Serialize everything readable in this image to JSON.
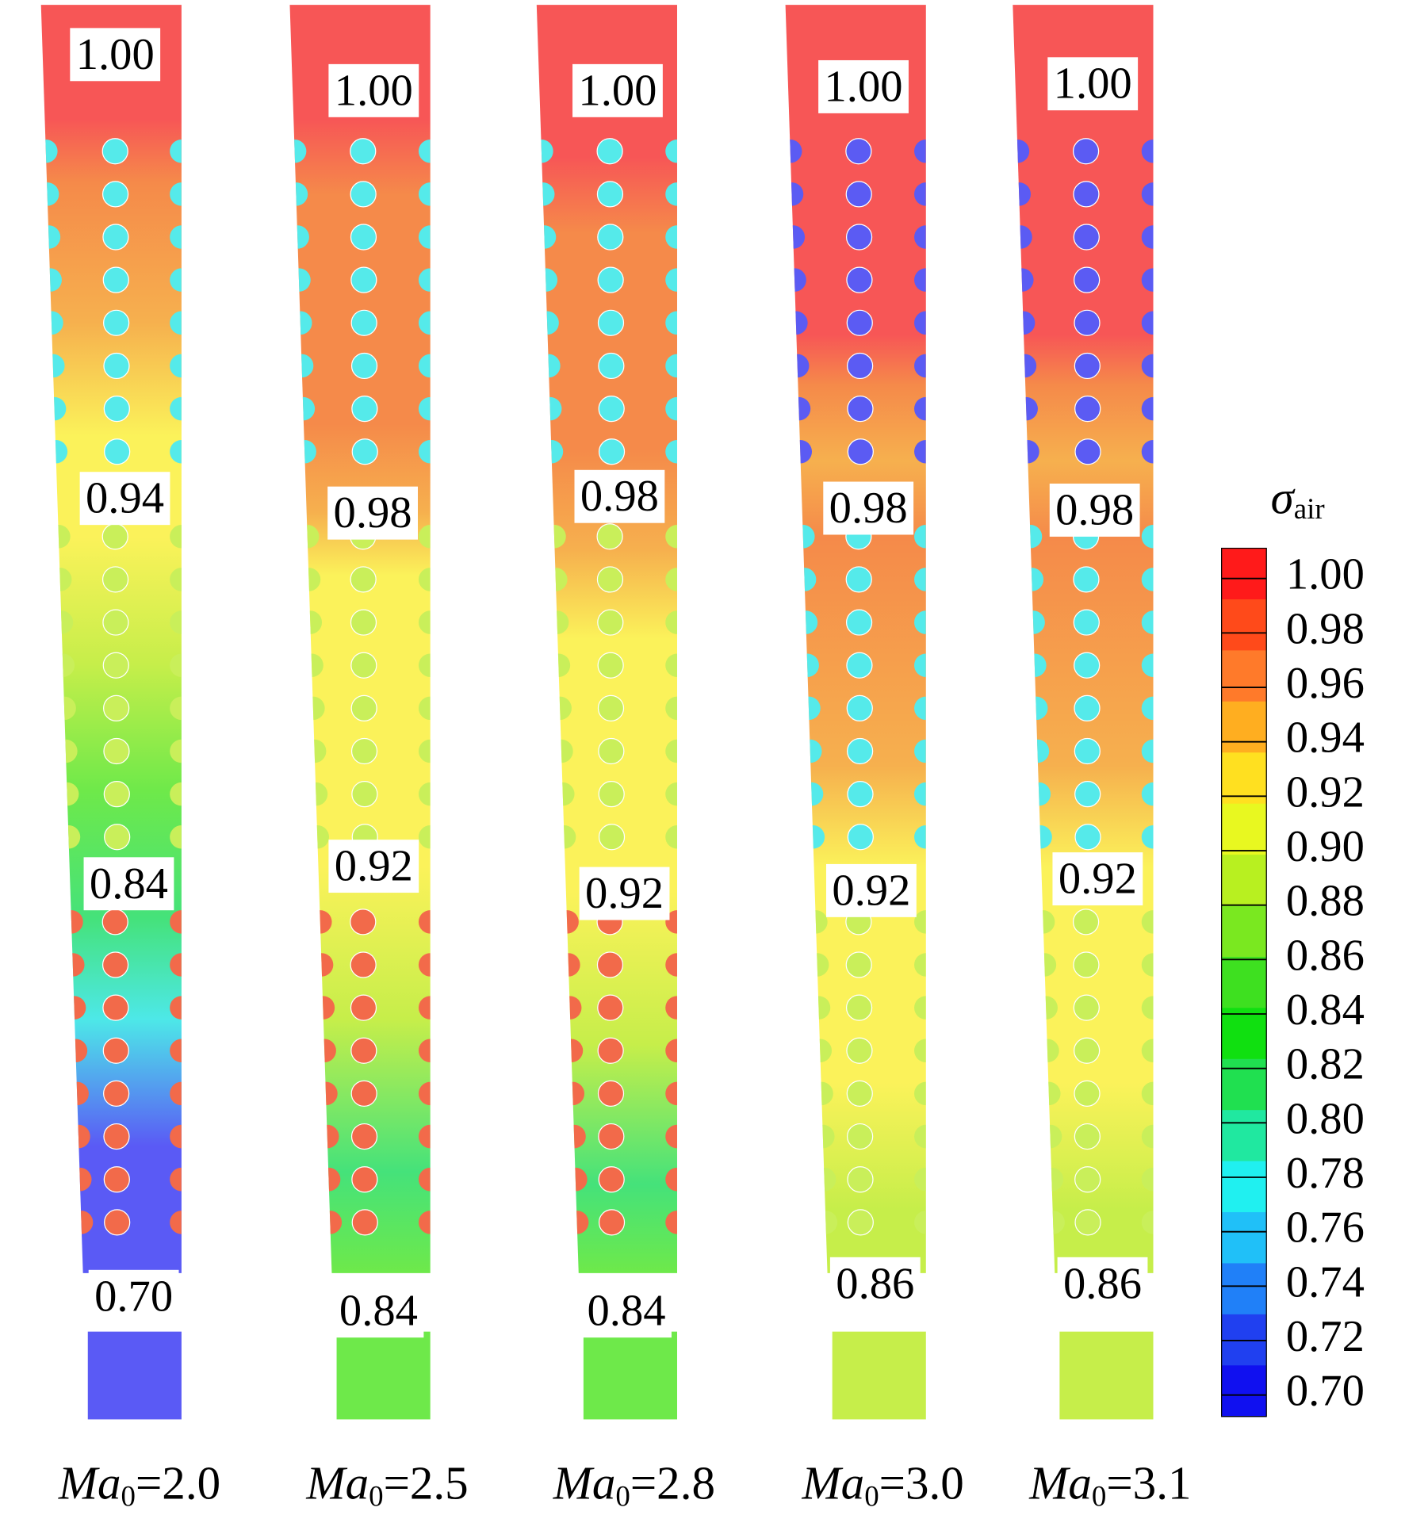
{
  "panels": [
    {
      "labels": [
        "1.00",
        "0.94",
        "0.84",
        "0.70"
      ],
      "caption": {
        "var": "Ma",
        "sub": "0",
        "rest": "=2.0"
      }
    },
    {
      "labels": [
        "1.00",
        "0.98",
        "0.92",
        "0.84"
      ],
      "caption": {
        "var": "Ma",
        "sub": "0",
        "rest": "=2.5"
      }
    },
    {
      "labels": [
        "1.00",
        "0.98",
        "0.92",
        "0.84"
      ],
      "caption": {
        "var": "Ma",
        "sub": "0",
        "rest": "=2.8"
      }
    },
    {
      "labels": [
        "1.00",
        "0.98",
        "0.92",
        "0.86"
      ],
      "caption": {
        "var": "Ma",
        "sub": "0",
        "rest": "=3.0"
      }
    },
    {
      "labels": [
        "1.00",
        "0.98",
        "0.92",
        "0.86"
      ],
      "caption": {
        "var": "Ma",
        "sub": "0",
        "rest": "=3.1"
      }
    }
  ],
  "colorbar": {
    "symbol": "σ",
    "sub": "air",
    "ticks": [
      "1.00",
      "0.98",
      "0.96",
      "0.94",
      "0.92",
      "0.90",
      "0.88",
      "0.86",
      "0.84",
      "0.82",
      "0.80",
      "0.78",
      "0.76",
      "0.74",
      "0.72",
      "0.70"
    ]
  }
}
